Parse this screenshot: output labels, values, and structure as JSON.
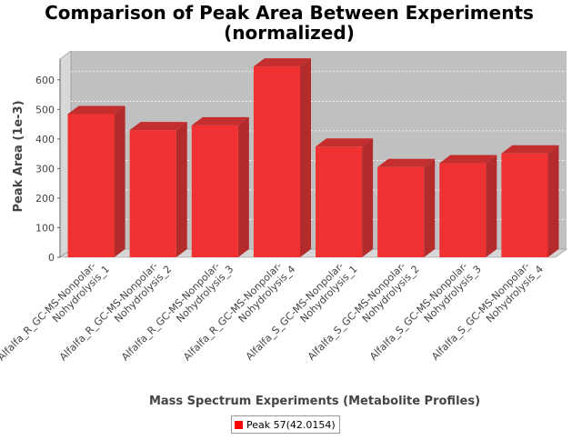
{
  "chart_data": {
    "type": "bar",
    "title_lines": [
      "Comparison of Peak Area Between Experiments",
      "(normalized)"
    ],
    "xlabel": "Mass Spectrum Experiments (Metabolite Profiles)",
    "ylabel": "Peak Area (1e-3)",
    "categories": [
      [
        "Alfalfa_R_GC-MS-Nonpolar-",
        "Nohydrolysis_1"
      ],
      [
        "Alfalfa_R_GC-MS-Nonpolar-",
        "Nohydrolysis_2"
      ],
      [
        "Alfalfa_R_GC-MS-Nonpolar-",
        "Nohydrolysis_3"
      ],
      [
        "Alfalfa_R_GC-MS-Nonpolar-",
        "Nohydrolysis_4"
      ],
      [
        "Alfalfa_S_GC-MS-Nonpolar-",
        "Nohydrolysis_1"
      ],
      [
        "Alfalfa_S_GC-MS-Nonpolar-",
        "Nohydrolysis_2"
      ],
      [
        "Alfalfa_S_GC-MS-Nonpolar-",
        "Nohydrolysis_3"
      ],
      [
        "Alfalfa_S_GC-MS-Nonpolar-",
        "Nohydrolysis_4"
      ]
    ],
    "series": [
      {
        "name": "Peak 57(42.0154)",
        "color": "#ff0000",
        "values": [
          484,
          430,
          446,
          645,
          374,
          305,
          318,
          351
        ]
      }
    ],
    "yticks": [
      0,
      100,
      200,
      300,
      400,
      500,
      600
    ],
    "ylim": [
      0,
      670
    ],
    "grid": true,
    "legend_position": "bottom"
  }
}
